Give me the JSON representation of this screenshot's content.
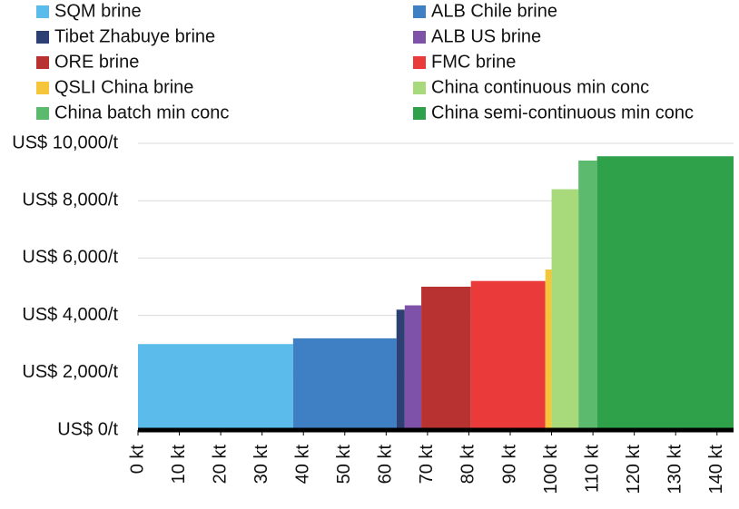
{
  "chart_data": {
    "type": "bar",
    "series": [
      {
        "name": "SQM brine",
        "color": "#5bbcec",
        "width": 37.5,
        "value": 3000
      },
      {
        "name": "ALB Chile brine",
        "color": "#3f7fc4",
        "width": 25,
        "value": 3200
      },
      {
        "name": "Tibet Zhabuye brine",
        "color": "#2e3f74",
        "width": 2,
        "value": 4200
      },
      {
        "name": "ALB US brine",
        "color": "#7d52a8",
        "width": 4,
        "value": 4350
      },
      {
        "name": "ORE brine",
        "color": "#b83232",
        "width": 12,
        "value": 5000
      },
      {
        "name": "FMC brine",
        "color": "#ea3a3a",
        "width": 18,
        "value": 5200
      },
      {
        "name": "QSLI China brine",
        "color": "#f5c53a",
        "width": 1.5,
        "value": 5600
      },
      {
        "name": "China continuous min conc",
        "color": "#a8d97a",
        "width": 6.5,
        "value": 8400
      },
      {
        "name": "China batch min conc",
        "color": "#5cba6e",
        "width": 4.5,
        "value": 9400
      },
      {
        "name": "China semi-continuous min conc",
        "color": "#2fa14a",
        "width": 33,
        "value": 9550
      }
    ],
    "xlim": [
      0,
      144
    ],
    "xticks": [
      {
        "value": 0,
        "label": "0 kt"
      },
      {
        "value": 10,
        "label": "10 kt"
      },
      {
        "value": 20,
        "label": "20 kt"
      },
      {
        "value": 30,
        "label": "30 kt"
      },
      {
        "value": 40,
        "label": "40 kt"
      },
      {
        "value": 50,
        "label": "50 kt"
      },
      {
        "value": 60,
        "label": "60 kt"
      },
      {
        "value": 70,
        "label": "70 kt"
      },
      {
        "value": 80,
        "label": "80 kt"
      },
      {
        "value": 90,
        "label": "90 kt"
      },
      {
        "value": 100,
        "label": "100 kt"
      },
      {
        "value": 110,
        "label": "110 kt"
      },
      {
        "value": 120,
        "label": "120 kt"
      },
      {
        "value": 130,
        "label": "130 kt"
      },
      {
        "value": 140,
        "label": "140 kt"
      }
    ],
    "ylim": [
      0,
      10000
    ],
    "yticks": [
      {
        "value": 0,
        "label": "US$ 0/t"
      },
      {
        "value": 2000,
        "label": "US$ 2,000/t"
      },
      {
        "value": 4000,
        "label": "US$ 4,000/t"
      },
      {
        "value": 6000,
        "label": "US$ 6,000/t"
      },
      {
        "value": 8000,
        "label": "US$ 8,000/t"
      },
      {
        "value": 10000,
        "label": "US$ 10,000/t"
      }
    ],
    "grid": true
  }
}
